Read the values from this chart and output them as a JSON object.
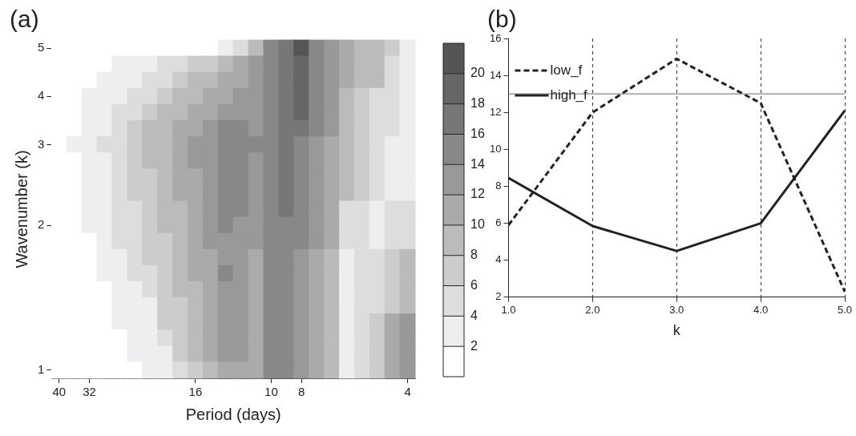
{
  "chart_data": [
    {
      "type": "heatmap",
      "title": "(a)",
      "xlabel": "Period (days)",
      "ylabel": "Wavenumber (k)",
      "categories": [
        "40",
        null,
        "32",
        null,
        null,
        null,
        null,
        null,
        null,
        "16",
        null,
        null,
        null,
        null,
        "10",
        null,
        "8",
        null,
        null,
        null,
        null,
        null,
        null,
        "4"
      ],
      "y_categories": [
        "5",
        null,
        null,
        "4",
        null,
        null,
        "3",
        null,
        null,
        null,
        null,
        "2",
        null,
        null,
        null,
        null,
        null,
        null,
        null,
        null,
        "1"
      ],
      "cells": [
        [
          1,
          1,
          1,
          1,
          1,
          1,
          1,
          1,
          1,
          1,
          1,
          3,
          5,
          9,
          15,
          17,
          21,
          15,
          13,
          11,
          9,
          9,
          7,
          3
        ],
        [
          1,
          1,
          1,
          1,
          3,
          3,
          3,
          5,
          5,
          7,
          7,
          9,
          11,
          13,
          15,
          17,
          19,
          15,
          13,
          11,
          9,
          9,
          5,
          3
        ],
        [
          1,
          1,
          1,
          3,
          3,
          3,
          5,
          5,
          7,
          9,
          9,
          11,
          11,
          13,
          15,
          17,
          19,
          15,
          13,
          11,
          9,
          9,
          5,
          3
        ],
        [
          1,
          1,
          3,
          3,
          3,
          5,
          5,
          7,
          9,
          9,
          11,
          11,
          13,
          13,
          15,
          17,
          19,
          15,
          13,
          9,
          7,
          5,
          5,
          3
        ],
        [
          1,
          1,
          3,
          3,
          5,
          5,
          7,
          9,
          9,
          11,
          11,
          13,
          13,
          13,
          15,
          17,
          19,
          15,
          13,
          9,
          7,
          5,
          5,
          3
        ],
        [
          1,
          1,
          3,
          3,
          5,
          7,
          9,
          9,
          11,
          11,
          13,
          15,
          15,
          13,
          15,
          17,
          17,
          15,
          13,
          9,
          7,
          5,
          5,
          3
        ],
        [
          1,
          3,
          3,
          5,
          5,
          7,
          9,
          9,
          11,
          13,
          13,
          15,
          15,
          15,
          15,
          17,
          15,
          13,
          11,
          9,
          7,
          5,
          3,
          3
        ],
        [
          1,
          1,
          3,
          3,
          5,
          7,
          9,
          9,
          11,
          13,
          13,
          15,
          15,
          13,
          15,
          17,
          15,
          13,
          11,
          9,
          7,
          5,
          3,
          3
        ],
        [
          1,
          1,
          3,
          3,
          5,
          7,
          7,
          9,
          11,
          11,
          13,
          15,
          15,
          13,
          15,
          17,
          15,
          13,
          11,
          9,
          7,
          5,
          3,
          3
        ],
        [
          1,
          1,
          3,
          3,
          5,
          7,
          7,
          9,
          11,
          11,
          13,
          15,
          15,
          13,
          15,
          17,
          15,
          13,
          11,
          9,
          7,
          5,
          3,
          3
        ],
        [
          1,
          1,
          3,
          3,
          5,
          5,
          7,
          9,
          9,
          11,
          13,
          15,
          15,
          13,
          15,
          17,
          15,
          13,
          11,
          5,
          5,
          3,
          5,
          5
        ],
        [
          1,
          1,
          3,
          3,
          5,
          5,
          7,
          9,
          9,
          11,
          13,
          15,
          13,
          13,
          15,
          15,
          15,
          13,
          11,
          5,
          5,
          3,
          5,
          5
        ],
        [
          1,
          1,
          1,
          3,
          5,
          5,
          7,
          7,
          9,
          11,
          13,
          13,
          13,
          13,
          15,
          15,
          15,
          13,
          11,
          5,
          5,
          3,
          5,
          5
        ],
        [
          1,
          1,
          1,
          3,
          3,
          5,
          7,
          7,
          9,
          11,
          11,
          13,
          13,
          11,
          15,
          15,
          13,
          11,
          9,
          3,
          5,
          5,
          7,
          9
        ],
        [
          1,
          1,
          1,
          3,
          3,
          5,
          5,
          7,
          9,
          11,
          11,
          15,
          13,
          11,
          15,
          15,
          13,
          11,
          9,
          3,
          5,
          5,
          7,
          9
        ],
        [
          1,
          1,
          1,
          1,
          3,
          3,
          5,
          7,
          9,
          9,
          11,
          13,
          13,
          11,
          15,
          15,
          13,
          11,
          9,
          3,
          5,
          5,
          7,
          9
        ],
        [
          1,
          1,
          1,
          1,
          3,
          3,
          3,
          7,
          7,
          9,
          11,
          13,
          13,
          11,
          15,
          15,
          13,
          11,
          9,
          3,
          5,
          5,
          7,
          9
        ],
        [
          1,
          1,
          1,
          1,
          3,
          3,
          3,
          7,
          7,
          9,
          11,
          13,
          13,
          11,
          15,
          15,
          13,
          11,
          9,
          3,
          5,
          7,
          11,
          13
        ],
        [
          1,
          1,
          1,
          1,
          1,
          3,
          3,
          5,
          7,
          9,
          11,
          13,
          13,
          11,
          15,
          15,
          13,
          11,
          9,
          3,
          5,
          7,
          11,
          13
        ],
        [
          1,
          1,
          1,
          1,
          1,
          3,
          3,
          3,
          7,
          9,
          11,
          13,
          13,
          11,
          15,
          15,
          13,
          11,
          9,
          3,
          5,
          7,
          11,
          13
        ],
        [
          1,
          1,
          1,
          1,
          1,
          1,
          3,
          3,
          5,
          7,
          9,
          11,
          11,
          11,
          15,
          15,
          13,
          11,
          9,
          3,
          5,
          7,
          11,
          13
        ]
      ],
      "clim": [
        0,
        22
      ],
      "cticks": [
        2,
        4,
        6,
        8,
        10,
        12,
        14,
        16,
        18,
        20
      ]
    },
    {
      "type": "line",
      "title": "(b)",
      "xlabel": "k",
      "x": [
        1,
        2,
        3,
        4,
        5
      ],
      "xlim": [
        1,
        5
      ],
      "xticks": [
        {
          "value": 1,
          "label": "1.0"
        },
        {
          "value": 2,
          "label": "2.0"
        },
        {
          "value": 3,
          "label": "3.0"
        },
        {
          "value": 4,
          "label": "4.0"
        },
        {
          "value": 5,
          "label": "5.0"
        }
      ],
      "ylim": [
        2,
        16
      ],
      "yticks": [
        2,
        4,
        6,
        8,
        10,
        12,
        14,
        16
      ],
      "grid": "x",
      "legend": "top left",
      "marker": "none",
      "series": [
        {
          "name": "low_f",
          "color": "#222222",
          "line_style": "dashed",
          "values": [
            5.9,
            12,
            14.9,
            12.5,
            2.3
          ]
        },
        {
          "name": "high_f",
          "color": "#222222",
          "line_style": "solid",
          "values": [
            8.45,
            5.85,
            4.5,
            6,
            12.1
          ]
        }
      ],
      "ref_lines": [
        {
          "axis": "y",
          "value": 13,
          "color": "#888888"
        }
      ]
    }
  ]
}
